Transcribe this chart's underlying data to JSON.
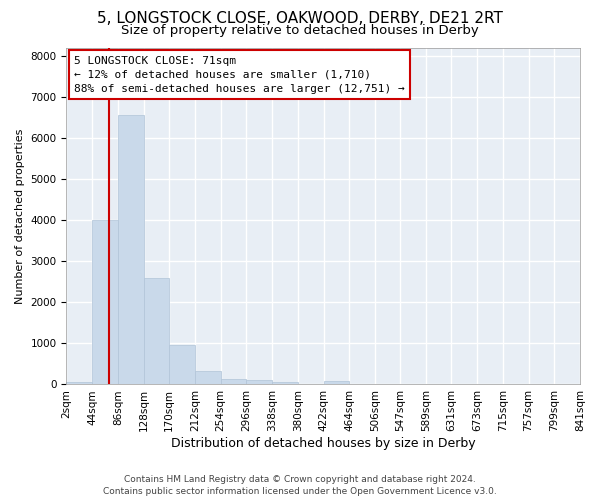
{
  "title1": "5, LONGSTOCK CLOSE, OAKWOOD, DERBY, DE21 2RT",
  "title2": "Size of property relative to detached houses in Derby",
  "xlabel": "Distribution of detached houses by size in Derby",
  "ylabel": "Number of detached properties",
  "annotation_line1": "5 LONGSTOCK CLOSE: 71sqm",
  "annotation_line2": "← 12% of detached houses are smaller (1,710)",
  "annotation_line3": "88% of semi-detached houses are larger (12,751) →",
  "bin_edges": [
    2,
    44,
    86,
    128,
    170,
    212,
    254,
    296,
    338,
    380,
    422,
    464,
    506,
    547,
    589,
    631,
    673,
    715,
    757,
    799,
    841
  ],
  "bin_values": [
    70,
    4000,
    6550,
    2600,
    950,
    320,
    130,
    100,
    70,
    0,
    80,
    0,
    0,
    0,
    0,
    0,
    0,
    0,
    0,
    0
  ],
  "bar_color": "#c9d9ea",
  "bar_edge_color": "#b0c4d8",
  "vline_color": "#cc0000",
  "vline_x": 71,
  "ylim": [
    0,
    8200
  ],
  "yticks": [
    0,
    1000,
    2000,
    3000,
    4000,
    5000,
    6000,
    7000,
    8000
  ],
  "background_color": "#e8eef5",
  "grid_color": "#ffffff",
  "footer1": "Contains HM Land Registry data © Crown copyright and database right 2024.",
  "footer2": "Contains public sector information licensed under the Open Government Licence v3.0.",
  "title1_fontsize": 11,
  "title2_fontsize": 9.5,
  "xlabel_fontsize": 9,
  "ylabel_fontsize": 8,
  "tick_fontsize": 7.5,
  "annotation_fontsize": 8,
  "footer_fontsize": 6.5
}
